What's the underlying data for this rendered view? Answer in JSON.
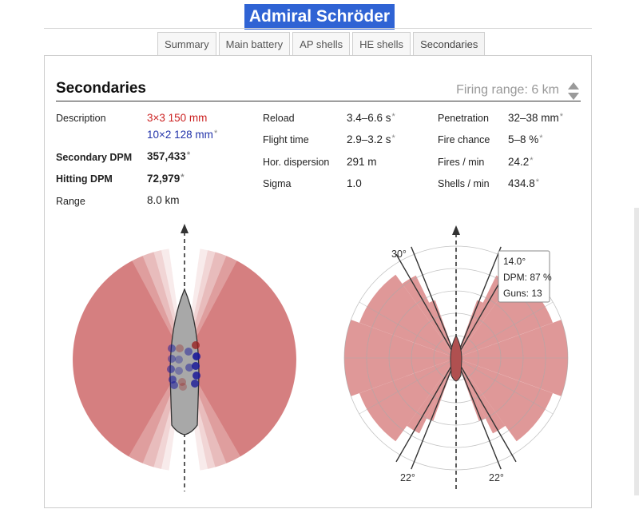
{
  "title": "Admiral Schröder",
  "tabs": [
    "Summary",
    "Main battery",
    "AP shells",
    "HE shells",
    "Secondaries"
  ],
  "active_tab": "Secondaries",
  "section": {
    "title": "Secondaries",
    "firing_range": "Firing range: 6 km"
  },
  "stats": {
    "description_label": "Description",
    "description_line1": "3×3 150 mm",
    "description_line2": "10×2 128 mm",
    "secondary_dpm_label": "Secondary DPM",
    "secondary_dpm_value": "357,433",
    "hitting_dpm_label": "Hitting DPM",
    "hitting_dpm_value": "72,979",
    "range_label": "Range",
    "range_value": "8.0 km",
    "reload_label": "Reload",
    "reload_value": "3.4–6.6 s",
    "flight_time_label": "Flight time",
    "flight_time_value": "2.9–3.2 s",
    "hor_dispersion_label": "Hor. dispersion",
    "hor_dispersion_value": "291 m",
    "sigma_label": "Sigma",
    "sigma_value": "1.0",
    "penetration_label": "Penetration",
    "penetration_value": "32–38 mm",
    "fire_chance_label": "Fire chance",
    "fire_chance_value": "5–8 %",
    "fires_min_label": "Fires / min",
    "fires_min_value": "24.2",
    "shells_min_label": "Shells / min",
    "shells_min_value": "434.8",
    "asterisk": "*"
  },
  "polar": {
    "angle_labels": [
      "30°",
      "22°",
      "22°"
    ],
    "tooltip": {
      "angle": "14.0°",
      "dpm": "DPM: 87 %",
      "guns": "Guns: 13"
    }
  },
  "colors": {
    "title_bg": "#2f63d4",
    "arc_red": "#c9585a",
    "polar_fill": "#d98686",
    "gun_red": "#992222",
    "gun_blue": "#1a1a99"
  }
}
